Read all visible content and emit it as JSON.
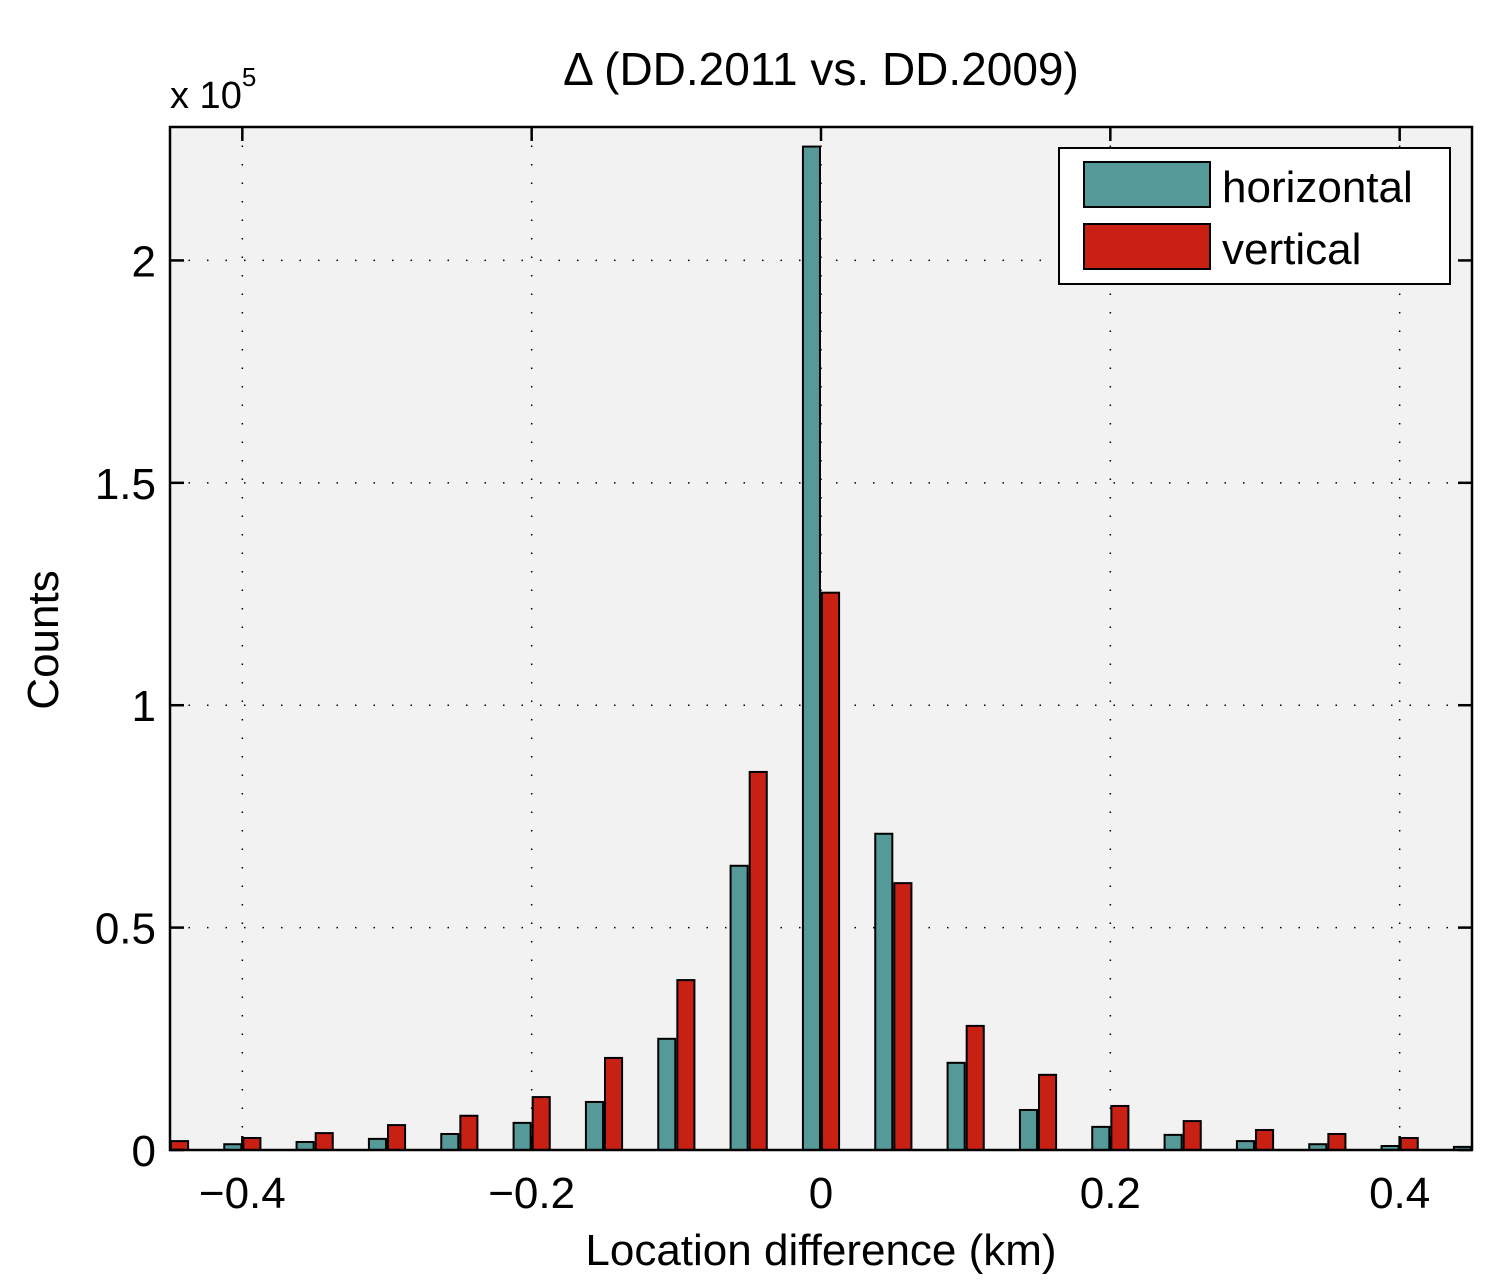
{
  "chart_data": {
    "type": "bar",
    "title": "Δ (DD.2011 vs. DD.2009)",
    "xlabel": "Location difference (km)",
    "ylabel": "Counts",
    "y_exponent_label": "x 10",
    "y_exponent_power": "5",
    "y_scale": 100000,
    "xlim": [
      -0.45,
      0.45
    ],
    "ylim": [
      0,
      230000
    ],
    "grid": true,
    "legend_position": "top-right",
    "x_ticks": [
      -0.4,
      -0.2,
      0,
      0.2,
      0.4
    ],
    "x_tick_labels": [
      "−0.4",
      "−0.2",
      "0",
      "0.2",
      "0.4"
    ],
    "y_ticks": [
      0,
      50000,
      100000,
      150000,
      200000
    ],
    "y_tick_labels": [
      "0",
      "0.5",
      "1",
      "1.5",
      "2"
    ],
    "bin_centers": [
      -0.45,
      -0.4,
      -0.35,
      -0.3,
      -0.25,
      -0.2,
      -0.15,
      -0.1,
      -0.05,
      0.0,
      0.05,
      0.1,
      0.15,
      0.2,
      0.25,
      0.3,
      0.35,
      0.4,
      0.45
    ],
    "series": [
      {
        "name": "horizontal",
        "color": "#559999",
        "values": [
          null,
          1300,
          1800,
          2500,
          3600,
          6100,
          10800,
          25000,
          63900,
          225600,
          71100,
          19600,
          9000,
          5200,
          3400,
          2000,
          1300,
          900,
          700
        ]
      },
      {
        "name": "vertical",
        "color": "#c82114",
        "values": [
          2000,
          2700,
          3800,
          5600,
          7700,
          11900,
          20700,
          38200,
          85000,
          125300,
          60000,
          27900,
          16900,
          9900,
          6500,
          4500,
          3600,
          2700,
          null
        ]
      }
    ]
  },
  "colors": {
    "plot_background": "#f2f2f2",
    "axis": "#000000",
    "legend_background": "#ffffff"
  }
}
